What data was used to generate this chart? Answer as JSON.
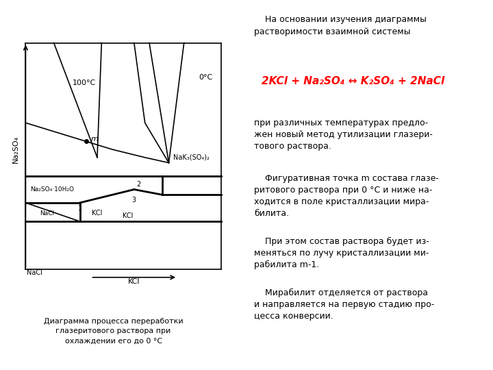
{
  "bg_color": "#ffffff",
  "diagram_title": "Диаграмма процесса переработки\nглазеритового раствора при\nохлаждении его до 0 °С",
  "para0": "    На основании изучения диаграммы\nрастворимости взаимной системы",
  "para1": "при различных температурах предло-\nжен новый метод утилизации глазери-\nтового раствора.",
  "para2": "    Фигуративная точка m состава глазе-\nритового раствора при 0 °С и ниже на-\nходится в поле кристаллизации мира-\nбилита.",
  "para3": "    При этом состав раствора будет из-\nменяться по лучу кристаллизации ми-\nрабилита m-1.",
  "para4": "    Мирабилит отделяется от раствора\nи направляется на первую стадию про-\nцесса конверсии."
}
